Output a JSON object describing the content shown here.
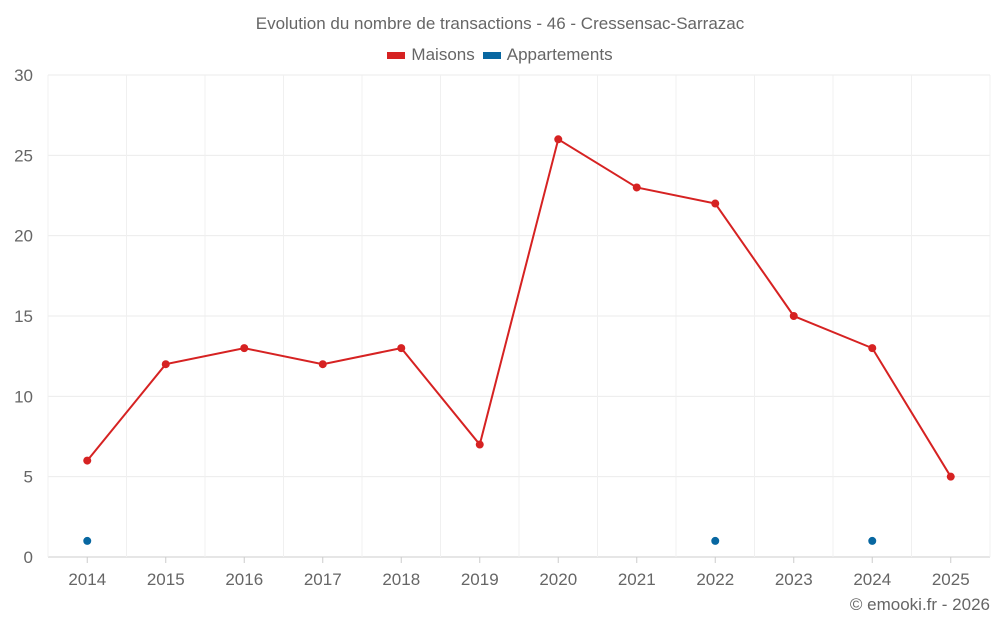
{
  "chart_data": {
    "type": "line",
    "title": "Evolution du nombre de transactions - 46 - Cressensac-Sarrazac",
    "categories": [
      "2014",
      "2015",
      "2016",
      "2017",
      "2018",
      "2019",
      "2020",
      "2021",
      "2022",
      "2023",
      "2024",
      "2025"
    ],
    "series": [
      {
        "name": "Maisons",
        "color": "#d62222",
        "values": [
          6,
          12,
          13,
          12,
          13,
          7,
          26,
          23,
          22,
          15,
          13,
          5
        ]
      },
      {
        "name": "Appartements",
        "color": "#0867a1",
        "values": [
          1,
          null,
          null,
          null,
          null,
          null,
          null,
          null,
          1,
          null,
          1,
          null
        ]
      }
    ],
    "ylim": [
      0,
      30
    ],
    "yticks": [
      0,
      5,
      10,
      15,
      20,
      25,
      30
    ],
    "grid": true,
    "legend": "top-center",
    "xlabel": "",
    "ylabel": ""
  },
  "credit": "© emooki.fr - 2026"
}
